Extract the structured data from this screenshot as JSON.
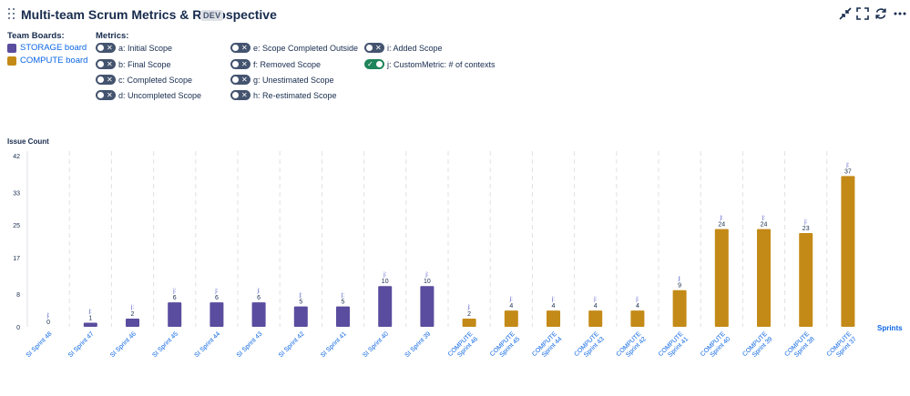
{
  "header": {
    "title": "Multi-team Scrum Metrics & Retrospective",
    "badge": "DEV",
    "icons": [
      "collapse-icon",
      "fullscreen-icon",
      "refresh-icon",
      "more-icon"
    ]
  },
  "boards": {
    "label": "Team Boards:",
    "items": [
      {
        "name": "STORAGE board",
        "color": "#5a4c9e"
      },
      {
        "name": "COMPUTE board",
        "color": "#c48a17"
      }
    ]
  },
  "metrics": {
    "label": "Metrics:",
    "items": [
      {
        "label": "a: Initial Scope",
        "on": false
      },
      {
        "label": "b: Final Scope",
        "on": false
      },
      {
        "label": "c: Completed Scope",
        "on": false
      },
      {
        "label": "d: Uncompleted Scope",
        "on": false
      },
      {
        "label": "e: Scope Completed Outside",
        "on": false
      },
      {
        "label": "f: Removed Scope",
        "on": false
      },
      {
        "label": "g: Unestimated Scope",
        "on": false
      },
      {
        "label": "h: Re-estimated Scope",
        "on": false
      },
      {
        "label": "i: Added Scope",
        "on": false
      },
      {
        "label": "j: CustomMetric: # of contexts",
        "on": true
      }
    ]
  },
  "chart_data": {
    "type": "bar",
    "title": "",
    "ylabel": "Issue Count",
    "xlabel": "Sprints",
    "ylim": [
      0,
      42
    ],
    "yticks": [
      0,
      8,
      17,
      25,
      33,
      42
    ],
    "point_label_prefix": "j:",
    "categories": [
      "SI Sprint 48",
      "SI Sprint 47",
      "SI Sprint 46",
      "SI Sprint 45",
      "SI Sprint 44",
      "SI Sprint 43",
      "SI Sprint 42",
      "SI Sprint 41",
      "SI Sprint 40",
      "SI Sprint 39",
      "COMPUTE Sprint 46",
      "COMPUTE Sprint 45",
      "COMPUTE Sprint 44",
      "COMPUTE Sprint 43",
      "COMPUTE Sprint 42",
      "COMPUTE Sprint 41",
      "COMPUTE Sprint 40",
      "COMPUTE Sprint 39",
      "COMPUTE Sprint 38",
      "COMPUTE Sprint 37"
    ],
    "values": [
      0,
      1,
      2,
      6,
      6,
      6,
      5,
      5,
      10,
      10,
      2,
      4,
      4,
      4,
      4,
      9,
      24,
      24,
      23,
      37
    ],
    "board": [
      "STORAGE board",
      "STORAGE board",
      "STORAGE board",
      "STORAGE board",
      "STORAGE board",
      "STORAGE board",
      "STORAGE board",
      "STORAGE board",
      "STORAGE board",
      "STORAGE board",
      "COMPUTE board",
      "COMPUTE board",
      "COMPUTE board",
      "COMPUTE board",
      "COMPUTE board",
      "COMPUTE board",
      "COMPUTE board",
      "COMPUTE board",
      "COMPUTE board",
      "COMPUTE board"
    ]
  }
}
